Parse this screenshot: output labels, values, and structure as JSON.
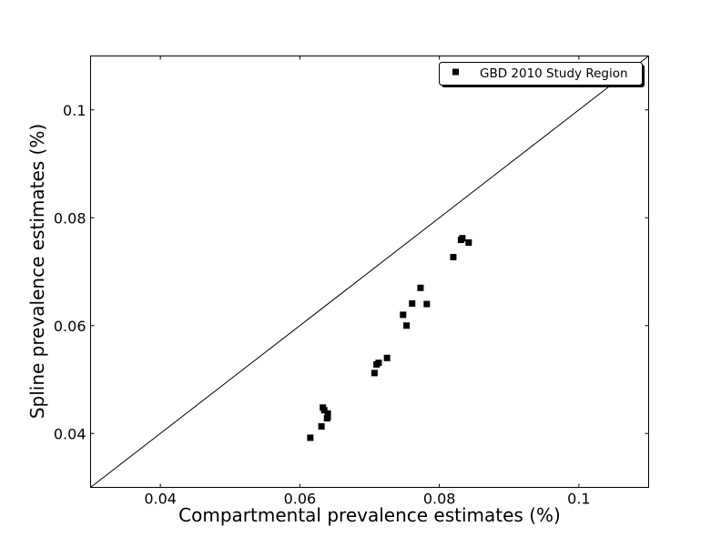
{
  "chart_data": {
    "type": "scatter",
    "xlabel": "Compartmental prevalence estimates (%)",
    "ylabel": "Spline prevalence estimates (%)",
    "xlim": [
      0.03,
      0.11
    ],
    "ylim": [
      0.03,
      0.11
    ],
    "xticks": [
      {
        "value": 0.04,
        "label": "0.04"
      },
      {
        "value": 0.06,
        "label": "0.06"
      },
      {
        "value": 0.08,
        "label": "0.08"
      },
      {
        "value": 0.1,
        "label": "0.1"
      }
    ],
    "yticks": [
      {
        "value": 0.04,
        "label": "0.04"
      },
      {
        "value": 0.06,
        "label": "0.06"
      },
      {
        "value": 0.08,
        "label": "0.08"
      },
      {
        "value": 0.1,
        "label": "0.1"
      }
    ],
    "reference_line": "y = x",
    "grid": false,
    "legend_position": "top-right",
    "series": [
      {
        "name": "GBD 2010 Study Region",
        "marker": "square",
        "color": "#000000",
        "points": [
          {
            "x": 0.0615,
            "y": 0.0392
          },
          {
            "x": 0.0631,
            "y": 0.0413
          },
          {
            "x": 0.0633,
            "y": 0.0448
          },
          {
            "x": 0.0635,
            "y": 0.0443
          },
          {
            "x": 0.0639,
            "y": 0.0428
          },
          {
            "x": 0.064,
            "y": 0.0437
          },
          {
            "x": 0.064,
            "y": 0.0431
          },
          {
            "x": 0.0707,
            "y": 0.0512
          },
          {
            "x": 0.071,
            "y": 0.0528
          },
          {
            "x": 0.0713,
            "y": 0.0531
          },
          {
            "x": 0.0725,
            "y": 0.054
          },
          {
            "x": 0.0748,
            "y": 0.062
          },
          {
            "x": 0.0753,
            "y": 0.06
          },
          {
            "x": 0.0761,
            "y": 0.0641
          },
          {
            "x": 0.0773,
            "y": 0.067
          },
          {
            "x": 0.0782,
            "y": 0.064
          },
          {
            "x": 0.082,
            "y": 0.0727
          },
          {
            "x": 0.0831,
            "y": 0.0759
          },
          {
            "x": 0.0833,
            "y": 0.0762
          },
          {
            "x": 0.0842,
            "y": 0.0754
          }
        ]
      }
    ]
  }
}
